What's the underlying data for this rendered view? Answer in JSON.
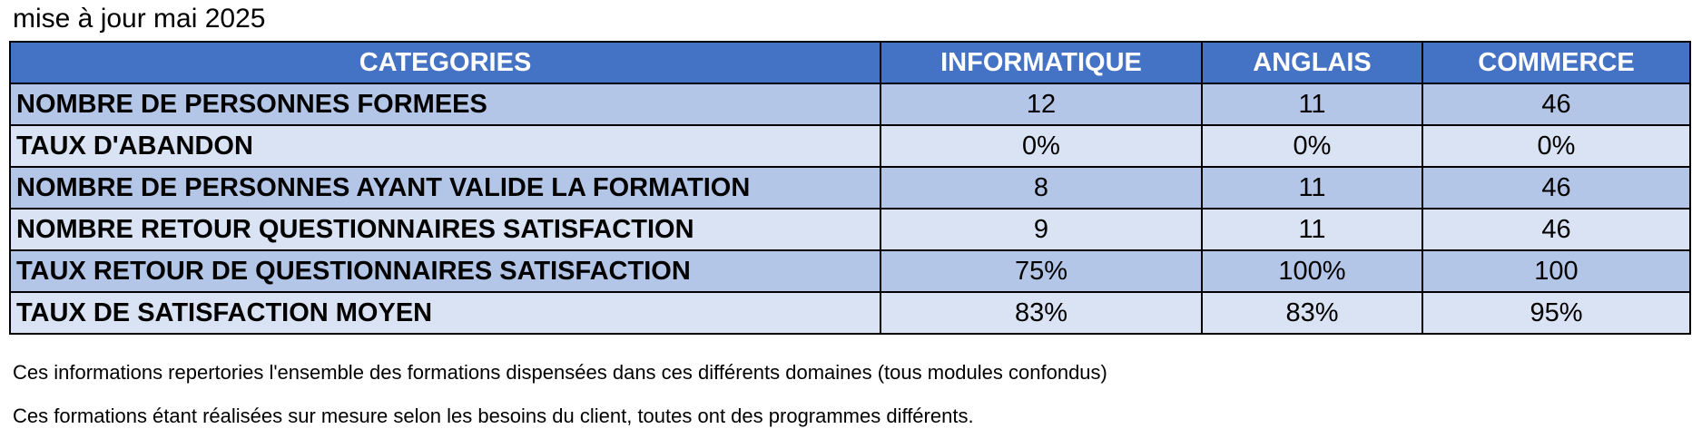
{
  "title": "mise à jour mai 2025",
  "table": {
    "header": [
      "CATEGORIES",
      "INFORMATIQUE",
      "ANGLAIS",
      "COMMERCE"
    ],
    "rows": [
      [
        "NOMBRE DE PERSONNES FORMEES",
        "12",
        "11",
        "46"
      ],
      [
        "TAUX D'ABANDON",
        "0%",
        "0%",
        "0%"
      ],
      [
        "NOMBRE DE PERSONNES AYANT VALIDE LA FORMATION",
        "8",
        "11",
        "46"
      ],
      [
        "NOMBRE RETOUR QUESTIONNAIRES SATISFACTION",
        "9",
        "11",
        "46"
      ],
      [
        "TAUX RETOUR DE QUESTIONNAIRES SATISFACTION",
        "75%",
        "100%",
        "100"
      ],
      [
        "TAUX DE SATISFACTION MOYEN",
        "83%",
        "83%",
        "95%"
      ]
    ]
  },
  "notes": [
    "Ces informations repertories l'ensemble des formations dispensées dans ces différents domaines (tous modules confondus)",
    "Ces formations étant réalisées sur mesure selon les besoins du client, toutes ont des programmes différents."
  ]
}
